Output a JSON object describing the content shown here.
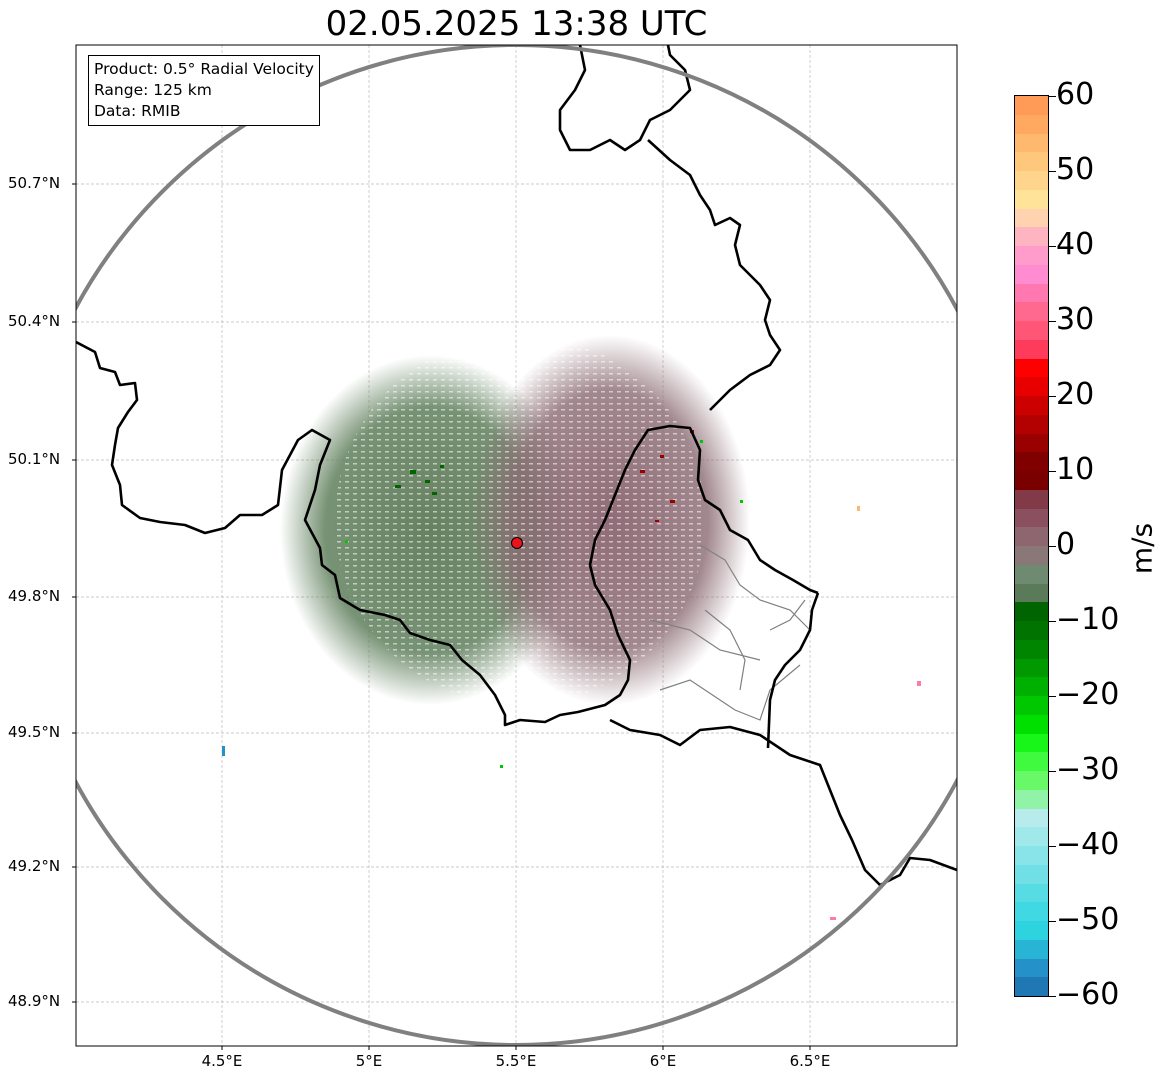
{
  "title": "02.05.2025 13:38 UTC",
  "info_box": {
    "product": "Product: 0.5° Radial Velocity",
    "range": "Range: 125 km",
    "data": "Data: RMIB"
  },
  "lat_labels": [
    "50.7°N",
    "50.4°N",
    "50.1°N",
    "49.8°N",
    "49.5°N",
    "49.2°N",
    "48.9°N"
  ],
  "lon_labels": [
    "4.5°E",
    "5°E",
    "5.5°E",
    "6°E",
    "6.5°E"
  ],
  "colorbar": {
    "unit": "m/s",
    "ticks": [
      "60",
      "50",
      "40",
      "30",
      "20",
      "10",
      "0",
      "−10",
      "−20",
      "−30",
      "−40",
      "−50",
      "−60"
    ],
    "range": [
      -60,
      60
    ],
    "colors": [
      "#ff9a57",
      "#ffa960",
      "#ffb96f",
      "#ffc77c",
      "#ffd58c",
      "#ffe399",
      "#ffd2b0",
      "#ffb4c1",
      "#ff9ccc",
      "#ff8cd0",
      "#ff78b0",
      "#ff6990",
      "#ff5577",
      "#ff3b5c",
      "#ff0000",
      "#e80000",
      "#cc0000",
      "#b30000",
      "#990000",
      "#800000",
      "#7a0000",
      "#833a48",
      "#8a5060",
      "#8d6670",
      "#8a7878",
      "#6e8a70",
      "#5a7a5a",
      "#006400",
      "#007300",
      "#008500",
      "#009a00",
      "#00b000",
      "#00c800",
      "#00e000",
      "#18f518",
      "#40fa40",
      "#68f868",
      "#90f3a8",
      "#b8ecec",
      "#a0e8ea",
      "#88e4e8",
      "#70e0e6",
      "#58dce4",
      "#40d8e2",
      "#2ed3e0",
      "#28b4d4",
      "#2492c8",
      "#1f78b4"
    ]
  },
  "map": {
    "radar_site": {
      "lon": 5.5,
      "lat": 49.91
    },
    "colors": {
      "border": "#000000",
      "range_ring": "#808080",
      "grid": "#bbbbbb",
      "radar_marker": "#e8141c"
    }
  }
}
